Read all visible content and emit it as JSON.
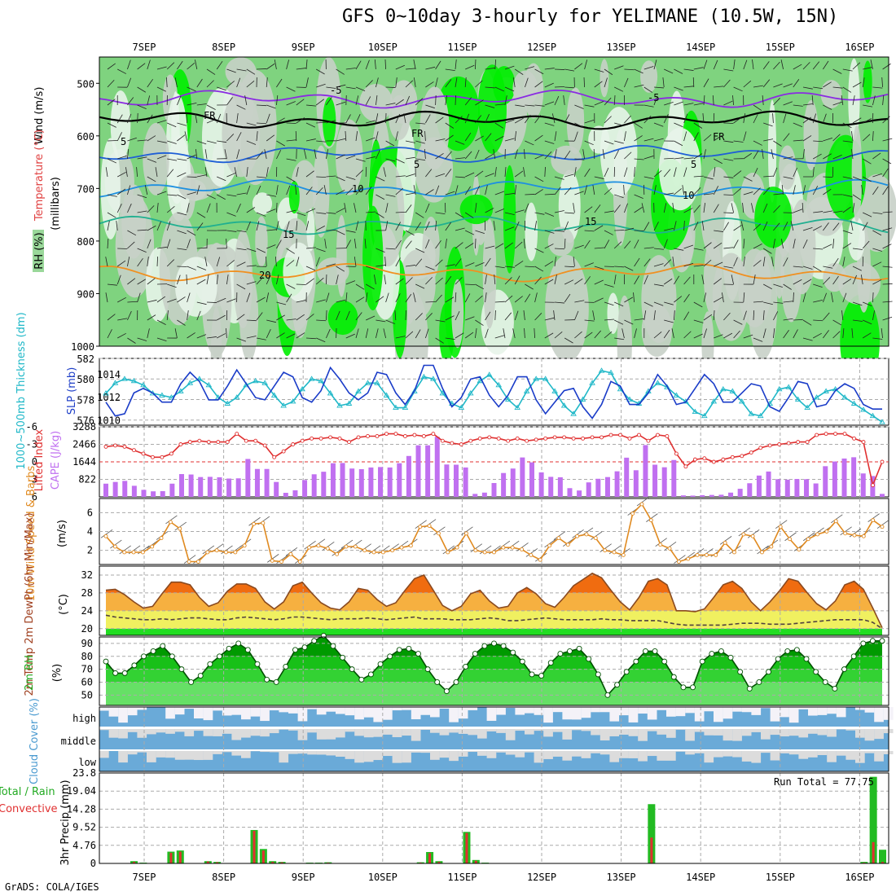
{
  "title": "GFS 0~10day 3-hourly for YELIMANE (10.5W, 15N)",
  "credit": "GrADS: COLA/IGES",
  "chart_data": [
    {
      "type": "heatmap",
      "name": "upper-air",
      "x_dates": [
        "7SEP",
        "8SEP",
        "9SEP",
        "10SEP",
        "11SEP",
        "12SEP",
        "13SEP",
        "14SEP",
        "15SEP",
        "16SEP"
      ],
      "ylabel_wind": "Wind (m/s)",
      "ylabel_temp": "Temperature (°C)",
      "ylabel_rh": "RH (%)",
      "ylabel_units": "(millibars)",
      "y_ticks": [
        500,
        600,
        700,
        800,
        900,
        1000
      ],
      "ylim": [
        1000,
        450
      ],
      "contours": [
        {
          "label": "-5",
          "level": 530,
          "color": "#8a2be2"
        },
        {
          "label": "FR",
          "level": 570,
          "color": "#000000"
        },
        {
          "label": "5",
          "level": 635,
          "color": "#1f5fd6"
        },
        {
          "label": "10",
          "level": 700,
          "color": "#1e90e0"
        },
        {
          "label": "15",
          "level": 770,
          "color": "#20b090"
        },
        {
          "label": "20",
          "level": 860,
          "color": "#f09020"
        }
      ],
      "contour_labels": [
        "-5",
        "FR",
        "FR",
        "FR",
        "5",
        "5",
        "5",
        "10",
        "10",
        "15",
        "15",
        "20",
        "-5"
      ]
    },
    {
      "type": "line",
      "name": "thickness-slp",
      "ylabel_left": "1000~500mb Thickness (dm)",
      "ylabel_right": "SLP (mb)",
      "y_ticks_left": [
        576,
        578,
        580,
        582
      ],
      "y_ticks_right": [
        1010,
        1012,
        1014
      ],
      "ylim_left": [
        575.5,
        582
      ],
      "series": [
        {
          "name": "SLP",
          "color": "#1a3cc8",
          "values": [
            1011.6,
            1010.4,
            1010.6,
            1012.4,
            1012.8,
            1012.4,
            1011.6,
            1011.6,
            1013.2,
            1014.2,
            1013.4,
            1011.8,
            1011.8,
            1013.0,
            1014.4,
            1013.2,
            1012.0,
            1011.8,
            1013.0,
            1014.2,
            1013.8,
            1012.0,
            1011.6,
            1012.6,
            1014.6,
            1013.6,
            1012.4,
            1011.8,
            1012.4,
            1014.2,
            1014.0,
            1012.4,
            1011.4,
            1012.6,
            1014.8,
            1014.8,
            1012.8,
            1011.2,
            1012.0,
            1013.6,
            1013.8,
            1012.2,
            1011.2,
            1012.2,
            1013.8,
            1013.8,
            1011.8,
            1010.6,
            1011.6,
            1012.6,
            1012.8,
            1011.2,
            1010.2,
            1011.4,
            1013.4,
            1013.0,
            1011.4,
            1011.4,
            1012.4,
            1014.0,
            1013.0,
            1011.4,
            1011.6,
            1012.8,
            1014.0,
            1013.2,
            1011.6,
            1011.6,
            1012.4,
            1013.2,
            1013.0,
            1011.2,
            1010.8,
            1012.0,
            1013.4,
            1013.2,
            1011.2,
            1011.4,
            1012.6,
            1013.2,
            1012.8,
            1011.4,
            1011.0,
            1011.0
          ]
        },
        {
          "name": "Thickness",
          "color": "#20b8c8",
          "values": [
            578.6,
            579.6,
            580.0,
            579.8,
            579.4,
            578.6,
            578.4,
            578.2,
            578.8,
            579.6,
            580.0,
            579.4,
            578.2,
            577.6,
            578.2,
            579.4,
            579.8,
            579.6,
            578.4,
            577.4,
            577.8,
            579.0,
            580.0,
            579.8,
            578.6,
            577.4,
            577.6,
            578.8,
            579.6,
            579.6,
            578.4,
            577.2,
            577.2,
            578.8,
            580.2,
            580.0,
            578.6,
            577.6,
            577.2,
            578.6,
            579.8,
            580.4,
            579.4,
            578.0,
            577.2,
            578.8,
            580.0,
            580.0,
            578.8,
            577.4,
            576.6,
            578.0,
            579.6,
            580.8,
            580.6,
            579.0,
            578.0,
            577.6,
            578.8,
            579.6,
            579.2,
            578.4,
            577.8,
            576.8,
            576.4,
            577.8,
            579.0,
            578.8,
            577.8,
            576.6,
            576.4,
            577.6,
            579.0,
            579.2,
            578.0,
            577.2,
            578.2,
            578.8,
            579.0,
            578.2,
            577.6,
            577.0,
            576.4,
            575.8
          ]
        }
      ]
    },
    {
      "type": "bar",
      "name": "cape-li",
      "ylabel_left": "Lifted Index",
      "ylabel_right": "CAPE (J/kg)",
      "y_ticks_left": [
        "-6",
        "-3",
        "0",
        "3",
        "6"
      ],
      "y_ticks_right": [
        "3288",
        "2466",
        "1644",
        "822"
      ],
      "series": [
        {
          "name": "CAPE",
          "color": "#c070f0",
          "values": [
            620,
            700,
            750,
            520,
            330,
            260,
            270,
            620,
            1070,
            1050,
            930,
            940,
            920,
            860,
            870,
            1780,
            1310,
            1310,
            700,
            190,
            310,
            790,
            1060,
            1180,
            1580,
            1590,
            1330,
            1300,
            1380,
            1400,
            1380,
            1580,
            1920,
            2420,
            2420,
            2820,
            1520,
            1510,
            1380,
            140,
            200,
            650,
            1120,
            1330,
            1850,
            1620,
            1150,
            940,
            920,
            410,
            300,
            680,
            850,
            930,
            1200,
            1840,
            1250,
            2430,
            1510,
            1390,
            1730,
            70,
            60,
            80,
            90,
            100,
            200,
            380,
            640,
            1000,
            1190,
            830,
            810,
            840,
            830,
            630,
            1440,
            1660,
            1800,
            1860,
            1100,
            980,
            140
          ]
        },
        {
          "name": "Lifted Index",
          "color": "#e03030",
          "values": [
            -2.6,
            -2.8,
            -2.6,
            -2.0,
            -1.4,
            -0.8,
            -0.8,
            -1.4,
            -3.0,
            -3.4,
            -3.6,
            -3.4,
            -3.4,
            -3.4,
            -4.8,
            -3.6,
            -3.6,
            -2.8,
            -0.8,
            -1.8,
            -3.0,
            -3.6,
            -4.0,
            -4.0,
            -4.2,
            -4.0,
            -3.4,
            -4.2,
            -4.4,
            -4.4,
            -4.8,
            -4.8,
            -4.4,
            -4.6,
            -4.4,
            -4.8,
            -3.6,
            -3.2,
            -3.0,
            -3.6,
            -4.0,
            -4.2,
            -4.0,
            -3.6,
            -4.0,
            -3.6,
            -3.8,
            -4.0,
            -4.2,
            -4.2,
            -4.0,
            -4.0,
            -4.2,
            -4.2,
            -4.6,
            -4.6,
            -4.0,
            -4.6,
            -3.6,
            -4.6,
            -4.4,
            -1.4,
            0.8,
            -0.4,
            -0.6,
            0.0,
            -0.4,
            -0.8,
            -1.0,
            -1.6,
            -2.4,
            -2.8,
            -3.0,
            -3.2,
            -3.4,
            -3.4,
            -4.6,
            -4.8,
            -4.8,
            -4.8,
            -4.0,
            -3.4,
            4.0,
            0.0
          ]
        }
      ]
    },
    {
      "type": "line",
      "name": "wind10m",
      "ylabel": "10m Wind Speed & Barbs",
      "yunit": "(m/s)",
      "y_ticks": [
        2,
        4,
        6
      ],
      "ylim": [
        0.5,
        7.5
      ],
      "series": [
        {
          "name": "Speed",
          "color": "#e08a20",
          "values": [
            3.5,
            2.4,
            1.8,
            1.8,
            1.8,
            2.4,
            3.3,
            5.0,
            4.3,
            0.8,
            0.8,
            1.8,
            2.0,
            1.8,
            1.8,
            2.5,
            4.8,
            4.9,
            0.9,
            0.8,
            1.6,
            0.8,
            2.3,
            2.5,
            2.2,
            1.6,
            2.4,
            2.4,
            2.0,
            1.8,
            1.8,
            2.0,
            2.3,
            2.5,
            4.5,
            4.6,
            3.8,
            1.8,
            2.3,
            3.8,
            2.0,
            1.8,
            1.8,
            2.3,
            2.3,
            2.1,
            1.5,
            1.0,
            2.5,
            3.3,
            2.6,
            3.5,
            3.7,
            3.3,
            2.0,
            1.8,
            1.5,
            5.9,
            6.9,
            5.2,
            2.6,
            2.2,
            0.8,
            1.1,
            1.5,
            1.5,
            1.5,
            2.8,
            1.8,
            3.7,
            3.5,
            1.8,
            2.4,
            4.5,
            3.2,
            2.1,
            3.2,
            3.7,
            4.0,
            5.1,
            3.8,
            3.6,
            3.5,
            5.2,
            4.5
          ]
        }
      ]
    },
    {
      "type": "area",
      "name": "temp-dewpt",
      "ylabel": "2m Temp 2m DewPt (6hr Min/Max)",
      "yunit": "(°C)",
      "y_ticks": [
        20,
        24,
        28,
        32
      ],
      "ylim": [
        18.5,
        34
      ],
      "series": [
        {
          "name": "2m Temp",
          "color": "#8a4a20",
          "values": [
            28.6,
            28.8,
            27.6,
            26.0,
            24.6,
            25.0,
            27.8,
            30.4,
            30.4,
            29.8,
            27.0,
            25.0,
            25.8,
            28.4,
            30.0,
            30.0,
            29.0,
            26.0,
            24.4,
            26.0,
            29.6,
            30.4,
            28.0,
            25.8,
            24.6,
            24.2,
            26.0,
            29.0,
            28.6,
            26.5,
            25.0,
            25.8,
            28.6,
            31.2,
            32.0,
            28.6,
            25.2,
            24.0,
            25.0,
            27.8,
            28.6,
            26.2,
            24.6,
            25.0,
            28.0,
            29.2,
            27.8,
            25.6,
            24.8,
            27.0,
            29.6,
            31.0,
            32.4,
            31.4,
            28.6,
            26.0,
            24.2,
            27.0,
            30.6,
            31.2,
            29.8,
            24.0,
            24.0,
            23.8,
            24.4,
            27.0,
            29.8,
            30.6,
            29.0,
            26.0,
            24.0,
            26.0,
            28.4,
            31.2,
            30.6,
            28.0,
            25.6,
            24.2,
            26.2,
            29.8,
            30.6,
            28.8,
            24.6,
            20.2
          ]
        },
        {
          "name": "2m DewPt",
          "color": "#504040",
          "values": [
            23.0,
            22.6,
            22.4,
            22.2,
            22.0,
            22.0,
            22.2,
            22.0,
            22.2,
            22.4,
            22.4,
            22.2,
            22.0,
            22.0,
            22.4,
            22.6,
            22.4,
            22.2,
            22.0,
            22.2,
            22.6,
            22.6,
            22.4,
            22.2,
            22.0,
            22.2,
            22.2,
            22.2,
            22.4,
            22.2,
            22.0,
            22.2,
            22.4,
            22.6,
            22.2,
            22.2,
            22.2,
            22.0,
            22.0,
            22.0,
            22.2,
            22.4,
            22.2,
            21.8,
            21.8,
            22.0,
            22.2,
            22.4,
            22.2,
            22.0,
            22.0,
            22.0,
            22.0,
            22.2,
            22.0,
            22.0,
            21.8,
            21.8,
            21.8,
            21.8,
            21.4,
            21.0,
            20.8,
            20.8,
            20.8,
            20.8,
            20.8,
            21.0,
            21.2,
            21.2,
            21.2,
            21.0,
            21.0,
            21.0,
            21.2,
            21.4,
            21.6,
            21.8,
            22.0,
            22.0,
            22.0,
            22.0,
            21.4,
            20.0
          ]
        }
      ]
    },
    {
      "type": "area",
      "name": "rh2m",
      "ylabel": "2m RH",
      "yunit": "(%)",
      "y_ticks": [
        50,
        60,
        70,
        80,
        90
      ],
      "ylim": [
        42,
        95
      ],
      "series": [
        {
          "name": "2m RH",
          "color": "#009a00",
          "values": [
            76,
            67,
            67,
            73,
            80,
            84,
            88,
            80,
            70,
            60,
            65,
            74,
            80,
            86,
            90,
            85,
            74,
            62,
            60,
            72,
            85,
            87,
            92,
            96,
            88,
            79,
            70,
            62,
            66,
            74,
            80,
            85,
            86,
            82,
            70,
            60,
            53,
            60,
            72,
            82,
            88,
            90,
            88,
            83,
            76,
            66,
            65,
            75,
            82,
            84,
            86,
            78,
            66,
            50,
            58,
            68,
            76,
            84,
            84,
            76,
            64,
            56,
            56,
            76,
            82,
            84,
            79,
            68,
            55,
            60,
            68,
            78,
            84,
            85,
            78,
            68,
            60,
            55,
            70,
            80,
            90,
            92,
            92
          ]
        }
      ]
    },
    {
      "type": "bar",
      "name": "cloud-cover",
      "ylabel": "Cloud Cover (%)",
      "levels": [
        "high",
        "middle",
        "low"
      ]
    },
    {
      "type": "bar",
      "name": "precip",
      "ylabel": "3hr Precip (mm)",
      "legend_total": "Total / Rain",
      "legend_convective": "Convective",
      "run_total_label": "Run Total = 77.75",
      "y_ticks": [
        "0",
        "4.76",
        "9.52",
        "14.28",
        "19.04",
        "23.8"
      ],
      "ylim": [
        0,
        23.8
      ],
      "series": [
        {
          "name": "Total",
          "color": "#22bb22",
          "values": [
            0.1,
            0.1,
            0.0,
            0.6,
            0.2,
            0.0,
            0.0,
            3.1,
            3.4,
            0.1,
            0.1,
            0.6,
            0.4,
            0.1,
            0.0,
            0.0,
            8.8,
            3.8,
            0.6,
            0.4,
            0.0,
            0.0,
            0.2,
            0.2,
            0.3,
            0.1,
            0.0,
            0.0,
            0.1,
            0.1,
            0.0,
            0.0,
            0.1,
            0.1,
            0.3,
            3.0,
            0.6,
            0.0,
            0.0,
            8.3,
            0.9,
            0.2,
            0.0,
            0.0,
            0.0,
            0.0,
            0.0,
            0.0,
            0.0,
            0.0,
            0.0,
            0.0,
            0.0,
            0.0,
            0.0,
            0.0,
            0.0,
            0.0,
            0.0,
            15.6,
            0.0,
            0.0,
            0.0,
            0.0,
            0.0,
            0.0,
            0.0,
            0.0,
            0.0,
            0.0,
            0.0,
            0.0,
            0.0,
            0.0,
            0.0,
            0.0,
            0.0,
            0.0,
            0.0,
            0.0,
            0.0,
            0.0,
            0.4,
            22.8,
            3.6
          ]
        },
        {
          "name": "Convective",
          "color": "#e03030",
          "values": [
            0.0,
            0.0,
            0.0,
            0.4,
            0.1,
            0.0,
            0.0,
            2.8,
            3.1,
            0.0,
            0.0,
            0.5,
            0.3,
            0.0,
            0.0,
            0.0,
            8.6,
            3.4,
            0.4,
            0.3,
            0.0,
            0.0,
            0.1,
            0.1,
            0.2,
            0.0,
            0.0,
            0.0,
            0.0,
            0.0,
            0.0,
            0.0,
            0.0,
            0.0,
            0.2,
            2.7,
            0.4,
            0.0,
            0.0,
            8.0,
            0.7,
            0.1,
            0.0,
            0.0,
            0.0,
            0.0,
            0.0,
            0.0,
            0.0,
            0.0,
            0.0,
            0.0,
            0.0,
            0.0,
            0.0,
            0.0,
            0.0,
            0.0,
            0.0,
            6.8,
            0.0,
            0.0,
            0.0,
            0.0,
            0.0,
            0.0,
            0.0,
            0.0,
            0.0,
            0.0,
            0.0,
            0.0,
            0.0,
            0.0,
            0.0,
            0.0,
            0.0,
            0.0,
            0.0,
            0.0,
            0.0,
            0.0,
            0.2,
            5.6,
            0.4
          ]
        }
      ]
    }
  ],
  "colors": {
    "rh_light": "#7fd37f",
    "rh_bright": "#00ee00",
    "rh_gray": "#c8d0c8",
    "rh_white": "#e8f4ea",
    "cloud_blue": "#6aaad8",
    "cloud_gray": "#dcdcdc",
    "cloud_white": "#f4f2f8"
  }
}
